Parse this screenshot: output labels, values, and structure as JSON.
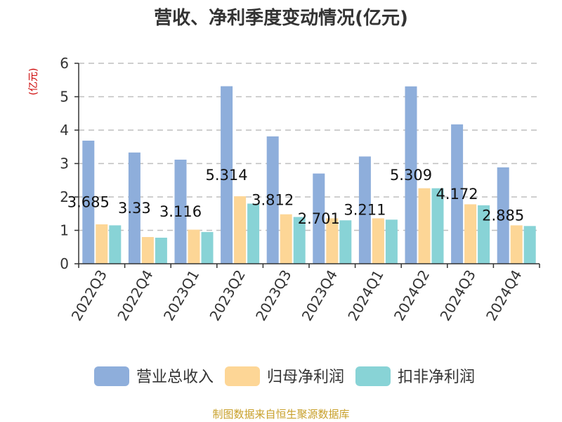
{
  "chart_data": {
    "type": "bar",
    "title": "营收、净利季度变动情况(亿元)",
    "unit_label": "(亿元)",
    "categories": [
      "2022Q3",
      "2022Q4",
      "2023Q1",
      "2023Q2",
      "2023Q3",
      "2023Q4",
      "2024Q1",
      "2024Q2",
      "2024Q3",
      "2024Q4"
    ],
    "series": [
      {
        "name": "营业总收入",
        "color": "#8eaedb",
        "values": [
          3.685,
          3.33,
          3.116,
          5.314,
          3.812,
          2.701,
          3.211,
          5.309,
          4.172,
          2.885
        ]
      },
      {
        "name": "归母净利润",
        "color": "#fdd696",
        "values": [
          1.18,
          0.8,
          1.02,
          2.02,
          1.48,
          1.36,
          1.36,
          2.26,
          1.78,
          1.15
        ]
      },
      {
        "name": "扣非净利润",
        "color": "#88d3d6",
        "values": [
          1.15,
          0.78,
          0.95,
          1.8,
          1.4,
          1.3,
          1.32,
          2.26,
          1.75,
          1.13
        ]
      }
    ],
    "data_labels": [
      "3.685",
      "3.33",
      "3.116",
      "5.314",
      "3.812",
      "2.701",
      "3.211",
      "5.309",
      "4.172",
      "2.885"
    ],
    "y_ticks": [
      "0",
      "1",
      "2",
      "3",
      "4",
      "5",
      "6"
    ],
    "ylim": [
      0,
      6
    ],
    "grid": true,
    "legend_position": "bottom",
    "source": "制图数据来自恒生聚源数据库"
  }
}
